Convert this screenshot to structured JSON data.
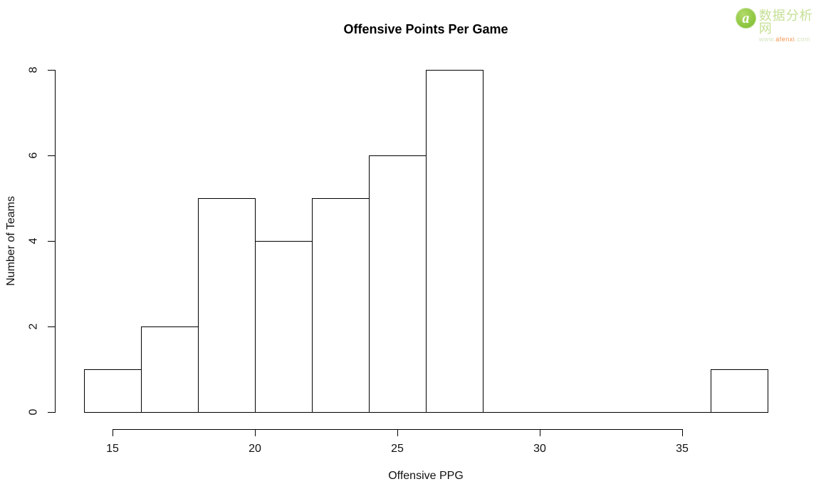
{
  "chart_data": {
    "type": "bar",
    "variant": "histogram",
    "title": "Offensive Points Per Game",
    "xlabel": "Offensive PPG",
    "ylabel": "Number of Teams",
    "breaks": [
      14,
      16,
      18,
      20,
      22,
      24,
      26,
      28,
      30,
      32,
      34,
      36,
      38
    ],
    "counts": [
      1,
      2,
      5,
      4,
      5,
      6,
      8,
      0,
      0,
      0,
      0,
      1
    ],
    "x_ticks": [
      15,
      20,
      25,
      30,
      35
    ],
    "y_ticks": [
      0,
      2,
      4,
      6,
      8
    ],
    "xlim": [
      14,
      38
    ],
    "ylim": [
      0,
      8
    ],
    "grid": false,
    "legend": null,
    "bar_fill": "#ffffff",
    "bar_stroke": "#000000",
    "background": "#ffffff"
  },
  "watermark": {
    "logo_glyph": "a",
    "site_name": "数据分析网",
    "url_prefix": "www.",
    "url_highlight": "afenxi",
    "url_suffix": ".com",
    "colors": {
      "logo_green": "#8cc63f",
      "site_text_green": "#c6e096",
      "url_text_green": "#d6e5c0",
      "url_orange": "#f5954f"
    }
  }
}
